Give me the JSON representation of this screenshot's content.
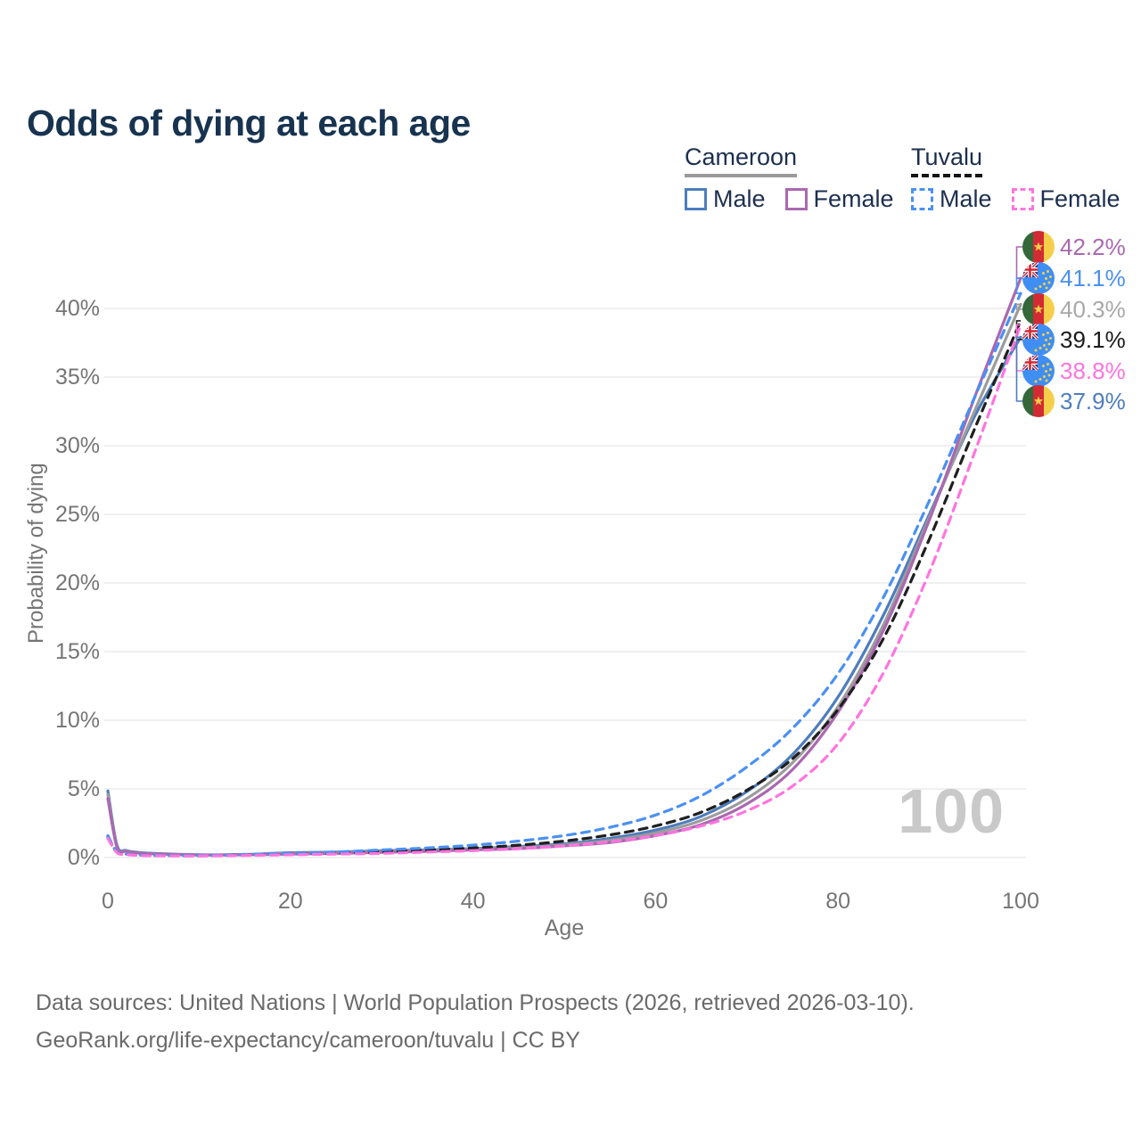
{
  "header": {
    "title": "Odds of dying at each age"
  },
  "legend": {
    "groups": [
      {
        "country": "Cameroon",
        "underline_style": "solid",
        "underline_color": "#9a9a9a",
        "items": [
          {
            "label": "Male",
            "color": "#4e7dbd",
            "dashed": false
          },
          {
            "label": "Female",
            "color": "#aa68b0",
            "dashed": false
          }
        ]
      },
      {
        "country": "Tuvalu",
        "underline_style": "dashed",
        "underline_color": "#141414",
        "items": [
          {
            "label": "Male",
            "color": "#4a90f2",
            "dashed": true
          },
          {
            "label": "Female",
            "color": "#ff74df",
            "dashed": true
          }
        ]
      }
    ]
  },
  "axes": {
    "x_title": "Age",
    "y_title": "Probability of dying",
    "x_ticks": [
      0,
      20,
      40,
      60,
      80,
      100
    ],
    "y_ticks": [
      {
        "value": 0,
        "label": "0%"
      },
      {
        "value": 5,
        "label": "5%"
      },
      {
        "value": 10,
        "label": "10%"
      },
      {
        "value": 15,
        "label": "15%"
      },
      {
        "value": 20,
        "label": "20%"
      },
      {
        "value": 25,
        "label": "25%"
      },
      {
        "value": 30,
        "label": "30%"
      },
      {
        "value": 35,
        "label": "35%"
      },
      {
        "value": 40,
        "label": "40%"
      }
    ]
  },
  "watermark": "100",
  "footer": {
    "line1": "Data sources: United Nations | World Population Prospects (2026, retrieved 2026-03-10).",
    "line2": "GeoRank.org/life-expectancy/cameroon/tuvalu | CC BY"
  },
  "chart_data": {
    "type": "line",
    "title": "Odds of dying at each age",
    "xlabel": "Age",
    "ylabel": "Probability of dying",
    "xlim": [
      0,
      100
    ],
    "ylim": [
      0,
      45
    ],
    "grid": "horizontal",
    "legend_position": "top-right",
    "x": [
      0,
      1,
      2,
      3,
      5,
      10,
      15,
      20,
      25,
      30,
      35,
      40,
      45,
      50,
      55,
      60,
      65,
      70,
      75,
      80,
      85,
      90,
      95,
      100
    ],
    "series": [
      {
        "name": "Cameroon Female",
        "country": "Cameroon",
        "sex": "Female",
        "style": "solid",
        "color": "#aa68b0",
        "label_color": "#aa68b0",
        "end_label": "42.2%",
        "values": [
          4.3,
          0.75,
          0.45,
          0.35,
          0.27,
          0.18,
          0.2,
          0.25,
          0.3,
          0.38,
          0.45,
          0.55,
          0.65,
          0.85,
          1.1,
          1.6,
          2.4,
          3.9,
          6.4,
          10.6,
          16.6,
          24.6,
          33.6,
          42.2
        ]
      },
      {
        "name": "Tuvalu Male",
        "country": "Tuvalu",
        "sex": "Male",
        "style": "dashed",
        "color": "#4a90f2",
        "label_color": "#4a90f2",
        "end_label": "41.1%",
        "values": [
          1.6,
          0.4,
          0.25,
          0.2,
          0.16,
          0.15,
          0.2,
          0.3,
          0.4,
          0.55,
          0.7,
          0.9,
          1.2,
          1.6,
          2.2,
          3.1,
          4.5,
          6.6,
          9.4,
          13.4,
          19.0,
          26.0,
          33.6,
          41.1
        ]
      },
      {
        "name": "Cameroon Both sexes",
        "country": "Cameroon",
        "sex": "Both",
        "style": "solid",
        "color": "#9c9c9c",
        "label_color": "#a8a8a8",
        "end_label": "40.3%",
        "values": [
          4.6,
          0.8,
          0.48,
          0.37,
          0.28,
          0.19,
          0.21,
          0.3,
          0.35,
          0.44,
          0.5,
          0.6,
          0.72,
          0.92,
          1.25,
          1.8,
          2.7,
          4.3,
          6.9,
          11.0,
          17.0,
          24.8,
          32.6,
          40.3
        ]
      },
      {
        "name": "Tuvalu Both sexes",
        "country": "Tuvalu",
        "sex": "Both",
        "style": "dashed",
        "color": "#1f1f1f",
        "label_color": "#1a1a1a",
        "end_label": "39.1%",
        "values": [
          1.5,
          0.38,
          0.24,
          0.19,
          0.15,
          0.13,
          0.18,
          0.25,
          0.32,
          0.42,
          0.55,
          0.7,
          0.9,
          1.2,
          1.65,
          2.3,
          3.3,
          4.9,
          7.2,
          10.8,
          16.0,
          23.2,
          31.3,
          39.1
        ]
      },
      {
        "name": "Tuvalu Female",
        "country": "Tuvalu",
        "sex": "Female",
        "style": "dashed",
        "color": "#ff74df",
        "label_color": "#ff74df",
        "end_label": "38.8%",
        "values": [
          1.4,
          0.35,
          0.22,
          0.17,
          0.13,
          0.12,
          0.15,
          0.2,
          0.25,
          0.3,
          0.4,
          0.5,
          0.65,
          0.85,
          1.15,
          1.6,
          2.3,
          3.4,
          5.2,
          8.3,
          13.5,
          20.8,
          29.6,
          38.8
        ]
      },
      {
        "name": "Cameroon Male",
        "country": "Cameroon",
        "sex": "Male",
        "style": "solid",
        "color": "#4e7dbd",
        "label_color": "#4e7dbd",
        "end_label": "37.9%",
        "values": [
          4.85,
          0.9,
          0.52,
          0.4,
          0.3,
          0.2,
          0.23,
          0.35,
          0.4,
          0.5,
          0.55,
          0.65,
          0.8,
          1.0,
          1.4,
          2.0,
          3.0,
          4.8,
          7.5,
          11.7,
          17.7,
          25.0,
          32.2,
          37.9
        ]
      }
    ]
  }
}
